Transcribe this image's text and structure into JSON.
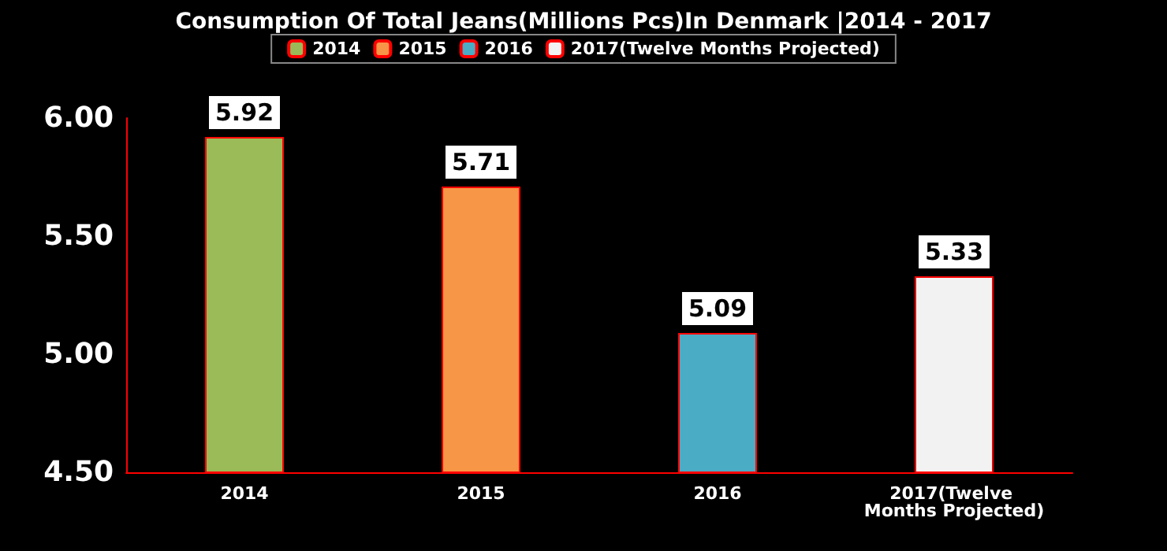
{
  "chart_data": {
    "type": "bar",
    "title": "Consumption Of Total Jeans(Millions Pcs)In Denmark |2014 - 2017",
    "categories": [
      "2014",
      "2015",
      "2016",
      "2017(Twelve Months Projected)"
    ],
    "series": [
      {
        "name": "2014",
        "color": "#9bbb59",
        "values": [
          5.92,
          null,
          null,
          null
        ]
      },
      {
        "name": "2015",
        "color": "#f79646",
        "values": [
          null,
          5.71,
          null,
          null
        ]
      },
      {
        "name": "2016",
        "color": "#4bacc6",
        "values": [
          null,
          null,
          5.09,
          null
        ]
      },
      {
        "name": "2017(Twelve Months Projected)",
        "color": "#f2f2f2",
        "values": [
          null,
          null,
          null,
          5.33
        ]
      }
    ],
    "ylim": [
      4.5,
      6.0
    ],
    "yticks": [
      {
        "value": 4.5,
        "label": "4.50"
      },
      {
        "value": 5.0,
        "label": "5.00"
      },
      {
        "value": 5.5,
        "label": "5.50"
      },
      {
        "value": 6.0,
        "label": "6.00"
      }
    ],
    "data_labels": true,
    "grid": false,
    "legend": "top"
  }
}
